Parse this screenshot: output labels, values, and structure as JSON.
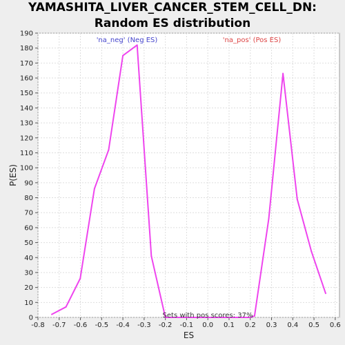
{
  "chart_data": {
    "type": "line",
    "title": "YAMASHITA_LIVER_CANCER_STEM_CELL_DN: Random ES distribution",
    "xlabel": "ES",
    "ylabel": "P(ES)",
    "xlim": [
      -0.8,
      0.62
    ],
    "ylim": [
      0,
      190
    ],
    "x_ticks": [
      -0.8,
      -0.7,
      -0.6,
      -0.5,
      -0.4,
      -0.3,
      -0.2,
      -0.1,
      0.0,
      0.1,
      0.2,
      0.3,
      0.4,
      0.5,
      0.6
    ],
    "x_tick_labels": [
      "-0.8",
      "-0.7",
      "-0.6",
      "-0.5",
      "-0.4",
      "-0.3",
      "-0.2",
      "-0.1",
      "0.0",
      "0.1",
      "0.2",
      "0.3",
      "0.4",
      "0.5",
      "0.6"
    ],
    "y_ticks": [
      0,
      10,
      20,
      30,
      40,
      50,
      60,
      70,
      80,
      90,
      100,
      110,
      120,
      130,
      140,
      150,
      160,
      170,
      180,
      190
    ],
    "grid": true,
    "series": [
      {
        "color": "#ee44ee",
        "x": [
          -0.735,
          -0.668,
          -0.601,
          -0.534,
          -0.467,
          -0.4,
          -0.333,
          -0.266,
          -0.2,
          -0.133,
          -0.066,
          0.0,
          0.066,
          0.133,
          0.2,
          0.22,
          0.287,
          0.354,
          0.421,
          0.488,
          0.555
        ],
        "y": [
          2,
          7,
          26,
          86,
          112,
          175,
          182,
          41,
          0,
          0,
          0,
          0,
          0,
          0,
          0,
          1,
          66,
          163,
          79,
          44,
          16
        ]
      }
    ],
    "annotations": {
      "neg": "'na_neg' (Neg ES)",
      "pos": "'na_pos' (Pos ES)",
      "sets_pos": "Sets with pos scores: 37%"
    },
    "colors": {
      "neg_label": "#4444cc",
      "pos_label": "#dd4444",
      "plot_bg": "#ffffff",
      "page_bg": "#eeeeee",
      "grid": "#dddddd"
    }
  }
}
